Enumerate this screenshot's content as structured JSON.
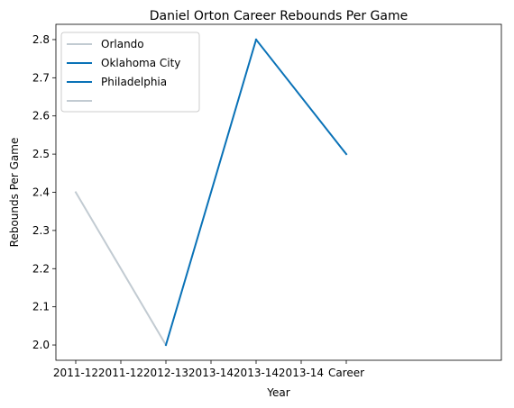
{
  "chart_data": {
    "type": "line",
    "title": "Daniel Orton Career Rebounds Per Game",
    "xlabel": "Year",
    "ylabel": "Rebounds Per Game",
    "categories": [
      "2011-12",
      "2011-12",
      "2012-13",
      "2013-14",
      "2013-14",
      "2013-14",
      "Career"
    ],
    "ylim": [
      1.96,
      2.84
    ],
    "yticks": [
      2.0,
      2.1,
      2.2,
      2.3,
      2.4,
      2.5,
      2.6,
      2.7,
      2.8
    ],
    "ytick_labels": [
      "2.0",
      "2.1",
      "2.2",
      "2.3",
      "2.4",
      "2.5",
      "2.6",
      "2.7",
      "2.8"
    ],
    "grid": false,
    "legend_position": "top-left",
    "series": [
      {
        "name": "Orlando",
        "color": "#c2cbd2",
        "points": [
          [
            0,
            2.4
          ],
          [
            2,
            2.0
          ]
        ]
      },
      {
        "name": "Oklahoma City",
        "color": "#0a72b7",
        "points": [
          [
            2,
            2.0
          ],
          [
            4,
            2.8
          ]
        ]
      },
      {
        "name": "Philadelphia",
        "color": "#0a72b7",
        "points": [
          [
            4,
            2.8
          ],
          [
            6,
            2.5
          ]
        ]
      },
      {
        "name": "",
        "color": "#c2cbd2",
        "points": []
      }
    ]
  }
}
